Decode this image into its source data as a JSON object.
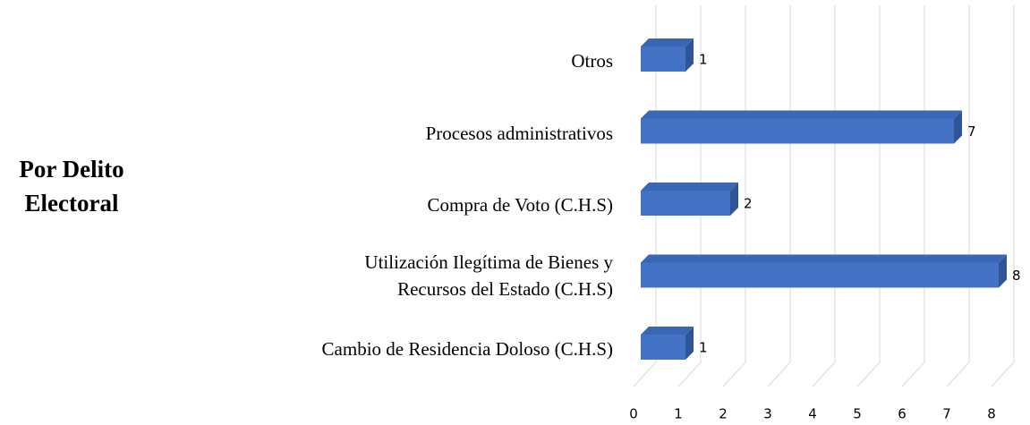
{
  "chart_data": {
    "type": "bar3d_horizontal",
    "title": "Por Delito\nElectoral",
    "categories": [
      "Otros",
      "Procesos administrativos",
      "Compra de Voto (C.H.S)",
      "Utilización Ilegítima de Bienes y\nRecursos del Estado (C.H.S)",
      "Cambio de Residencia Doloso (C.H.S)"
    ],
    "values": [
      1,
      7,
      2,
      8,
      1
    ],
    "color": "#4472c4",
    "xlim": [
      0,
      8
    ],
    "xticks": [
      0,
      1,
      2,
      3,
      4,
      5,
      6,
      7,
      8
    ],
    "grid": true
  }
}
